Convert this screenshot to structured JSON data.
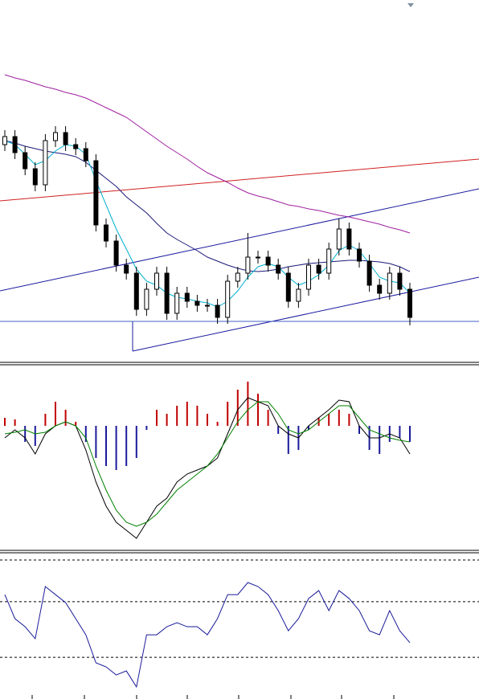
{
  "chart_data": [
    {
      "type": "candlestick",
      "ylim": [
        0,
        450
      ],
      "up_color": "#ffffff",
      "down_color": "#000000",
      "open": [
        270,
        280,
        260,
        240,
        220,
        275,
        285,
        270,
        265,
        250,
        170,
        150,
        120,
        110,
        65,
        90,
        110,
        60,
        85,
        75,
        70,
        70,
        55,
        100,
        110,
        130,
        130,
        120,
        110,
        75,
        90,
        120,
        110,
        140,
        165,
        140,
        125,
        95,
        85,
        110,
        90
      ],
      "high": [
        288,
        288,
        268,
        248,
        283,
        293,
        293,
        278,
        273,
        258,
        178,
        158,
        128,
        118,
        98,
        118,
        118,
        93,
        93,
        83,
        78,
        78,
        108,
        118,
        160,
        138,
        138,
        128,
        118,
        98,
        128,
        128,
        148,
        178,
        173,
        148,
        133,
        103,
        118,
        118,
        98
      ],
      "low": [
        262,
        252,
        232,
        212,
        212,
        267,
        262,
        257,
        242,
        162,
        142,
        112,
        102,
        57,
        57,
        82,
        52,
        52,
        67,
        62,
        62,
        47,
        47,
        92,
        102,
        122,
        112,
        102,
        67,
        67,
        82,
        102,
        102,
        132,
        132,
        117,
        87,
        77,
        77,
        82,
        45
      ],
      "close": [
        280,
        260,
        240,
        220,
        275,
        285,
        270,
        265,
        250,
        170,
        150,
        120,
        110,
        65,
        90,
        110,
        60,
        85,
        75,
        70,
        70,
        55,
        100,
        110,
        130,
        130,
        120,
        110,
        75,
        90,
        120,
        110,
        140,
        165,
        140,
        125,
        95,
        85,
        110,
        90,
        55
      ],
      "series": [
        {
          "color": "#a020a0",
          "values": [
            357,
            353,
            350,
            346,
            342,
            339,
            335,
            332,
            328,
            322,
            316,
            310,
            304,
            295,
            286,
            277,
            268,
            260,
            252,
            243,
            235,
            229,
            223,
            216,
            210,
            206,
            203,
            199,
            195,
            193,
            190,
            188,
            185,
            182,
            180,
            177,
            174,
            171,
            167,
            164,
            160
          ]
        },
        {
          "color": "#1a1a7a",
          "values": [
            275,
            272,
            268,
            265,
            262,
            260,
            258,
            255,
            248,
            238,
            228,
            218,
            205,
            195,
            185,
            172,
            160,
            152,
            145,
            138,
            130,
            125,
            120,
            116,
            113,
            112,
            113,
            115,
            118,
            120,
            122,
            123,
            124,
            125,
            126,
            126,
            125,
            124,
            122,
            118,
            112
          ]
        },
        {
          "color": "#00b0d0",
          "values": [
            275,
            270,
            258,
            245,
            250,
            262,
            270,
            268,
            258,
            225,
            195,
            165,
            140,
            115,
            100,
            95,
            85,
            80,
            78,
            75,
            73,
            68,
            75,
            88,
            105,
            118,
            122,
            118,
            105,
            95,
            100,
            108,
            120,
            138,
            145,
            138,
            122,
            105,
            100,
            98,
            85
          ]
        }
      ]
    },
    {
      "type": "macd",
      "ylim": [
        -155,
        75
      ],
      "pos_color": "#c00000",
      "neg_color": "#1a1a9a",
      "histogram": [
        10,
        8,
        -20,
        -25,
        15,
        30,
        20,
        5,
        -20,
        -40,
        -50,
        -55,
        -50,
        -40,
        -5,
        20,
        15,
        25,
        30,
        25,
        15,
        5,
        30,
        45,
        55,
        40,
        20,
        -10,
        -35,
        -30,
        -5,
        10,
        15,
        20,
        15,
        -10,
        -30,
        -35,
        -20,
        -15,
        -20
      ],
      "series": [
        {
          "color": "#000000",
          "values": [
            -15,
            -5,
            -15,
            -35,
            -10,
            0,
            5,
            0,
            -30,
            -70,
            -100,
            -120,
            -130,
            -140,
            -120,
            -100,
            -90,
            -70,
            -60,
            -55,
            -50,
            -40,
            -10,
            20,
            35,
            30,
            25,
            0,
            -10,
            -15,
            0,
            10,
            20,
            32,
            30,
            0,
            -15,
            -15,
            -10,
            -15,
            -35
          ]
        },
        {
          "color": "#008000",
          "values": [
            -10,
            -8,
            -5,
            -10,
            -8,
            0,
            5,
            0,
            -15,
            -50,
            -80,
            -105,
            -120,
            -125,
            -120,
            -110,
            -95,
            -80,
            -70,
            -60,
            -50,
            -35,
            -15,
            5,
            20,
            30,
            30,
            15,
            -5,
            -10,
            -5,
            5,
            15,
            25,
            25,
            10,
            -5,
            -10,
            -15,
            -18,
            -20
          ]
        }
      ]
    },
    {
      "type": "line",
      "ylim": [
        0,
        100
      ],
      "levels": [
        30,
        70
      ],
      "series": [
        {
          "color": "#1a1a9a",
          "values": [
            75.1,
            57.8,
            52.0,
            43.4,
            80.9,
            75.1,
            69.4,
            57.8,
            46.2,
            26.0,
            23.1,
            17.3,
            20.2,
            8.7,
            46.2,
            46.2,
            52.0,
            54.9,
            52.0,
            52.0,
            46.2,
            57.8,
            75.1,
            75.1,
            83.8,
            80.9,
            75.1,
            63.6,
            49.1,
            57.8,
            72.3,
            78.0,
            63.6,
            78.0,
            72.3,
            63.6,
            49.1,
            46.2,
            63.6,
            49.1,
            40.5
          ]
        }
      ]
    }
  ]
}
